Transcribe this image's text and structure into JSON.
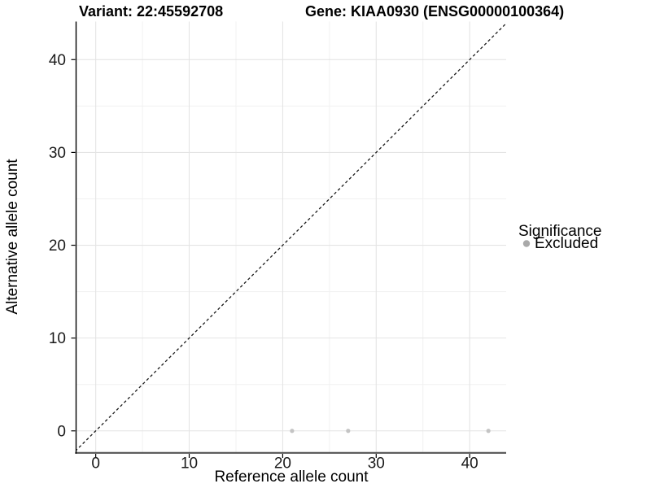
{
  "chart_data": {
    "type": "scatter",
    "titles": {
      "left": "Variant: 22:45592708",
      "right": "Gene: KIAA0930 (ENSG00000100364)"
    },
    "xlabel": "Reference allele count",
    "ylabel": "Alternative allele count",
    "xlim": [
      -2.1,
      43.9
    ],
    "ylim": [
      -2.3,
      44.1
    ],
    "xticks": [
      0,
      10,
      20,
      30,
      40
    ],
    "yticks": [
      0,
      10,
      20,
      30,
      40
    ],
    "x_minor_ticks": [
      5,
      15,
      25,
      35
    ],
    "y_minor_ticks": [
      5,
      15,
      25,
      35
    ],
    "grid": "on",
    "reference_line": {
      "type": "identity",
      "slope": 1,
      "intercept": 0,
      "style": "dashed",
      "color": "#1a1a1a"
    },
    "series": [
      {
        "name": "Excluded",
        "color": "#c4c4c4",
        "points": [
          {
            "x": 21,
            "y": 0
          },
          {
            "x": 27,
            "y": 0
          },
          {
            "x": 42,
            "y": 0
          }
        ]
      }
    ],
    "legend": {
      "title": "Significance",
      "position": "right-center",
      "items": [
        {
          "label": "Excluded",
          "color": "#a9a9a9"
        }
      ]
    }
  },
  "colors": {
    "background": "#ffffff",
    "grid_major": "#e4e4e4",
    "grid_minor": "#f1f1f1",
    "axis_line_x": "#545454",
    "axis_line_y": "#000000",
    "tick_mark": "#000000"
  }
}
